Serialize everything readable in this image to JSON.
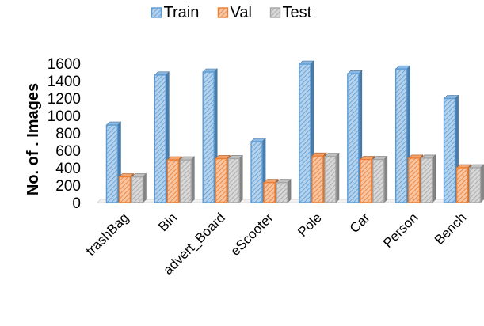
{
  "chart_data": {
    "type": "bar",
    "categories": [
      "trashBag",
      "Bin",
      "advert_Board",
      "eScooter",
      "Pole",
      "Car",
      "Person",
      "Bench"
    ],
    "series": [
      {
        "name": "Train",
        "values": [
          890,
          1465,
          1500,
          700,
          1590,
          1480,
          1535,
          1195
        ],
        "color": "#5b9bd5"
      },
      {
        "name": "Val",
        "values": [
          295,
          490,
          505,
          230,
          535,
          495,
          510,
          400
        ],
        "color": "#ed7d31"
      },
      {
        "name": "Test",
        "values": [
          295,
          490,
          505,
          230,
          530,
          495,
          510,
          400
        ],
        "color": "#a5a5a5"
      }
    ],
    "ylabel": "No. of . Images",
    "ylim": [
      0,
      1600
    ],
    "yticks": [
      "0",
      "200",
      "400",
      "600",
      "800",
      "1000",
      "1200",
      "1400",
      "1600"
    ],
    "grid": false,
    "legend_position": "top-center",
    "style": "3d-clustered-column"
  }
}
